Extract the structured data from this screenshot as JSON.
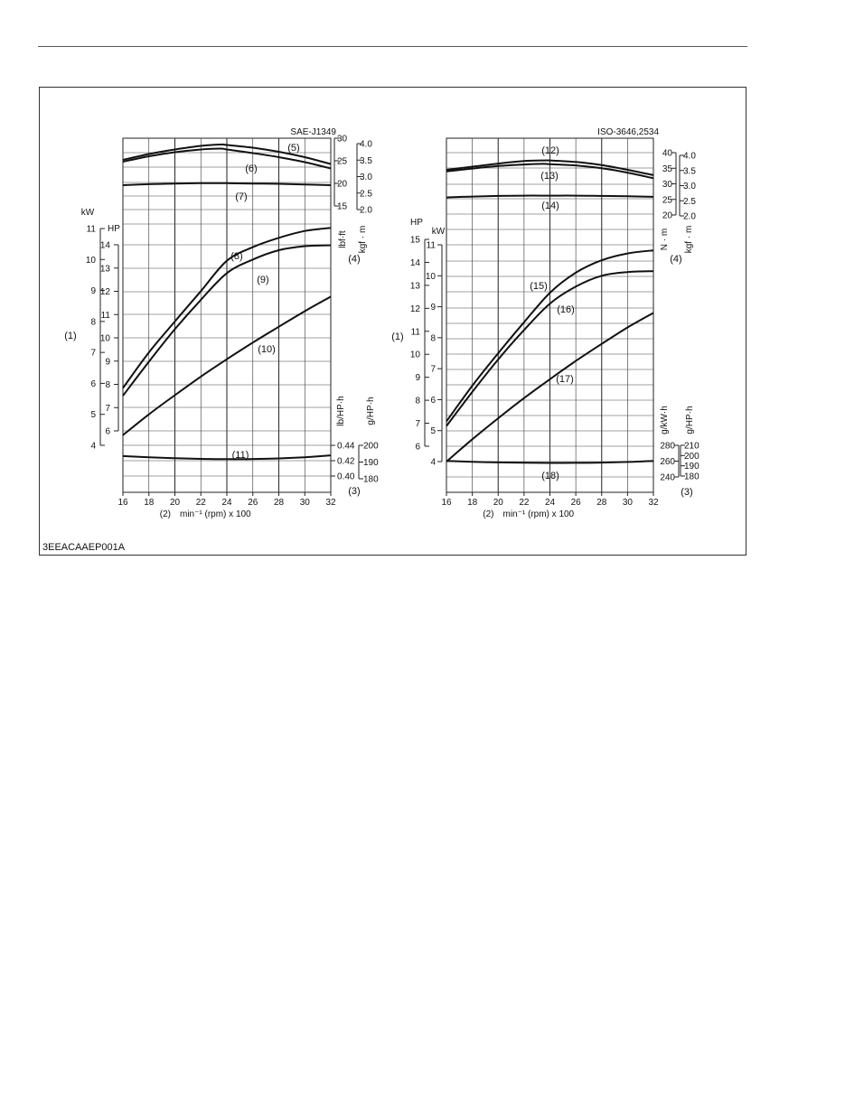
{
  "figure_code": "3EEACAAEP001A",
  "chart_data": [
    {
      "type": "line",
      "title": "SAE-J1349",
      "xlabel_num": "(2)",
      "xlabel": "min⁻¹ (rpm) x 100",
      "xlim": [
        16,
        32
      ],
      "xticks": [
        "16",
        "18",
        "20",
        "22",
        "24",
        "26",
        "28",
        "30",
        "32"
      ],
      "axis_labels": {
        "power_callout": "(1)",
        "kw": "kW",
        "hp": "HP",
        "torque_callout": "(4)",
        "lbfft": "lbf·ft",
        "kgfm": "kgf · m",
        "fuel_callout": "(3)",
        "lbhph": "lb/HP·h",
        "ghph": "g/HP·h"
      },
      "kw_ticks": [
        "4",
        "5",
        "6",
        "7",
        "8",
        "9",
        "10",
        "11"
      ],
      "hp_ticks": [
        "6",
        "7",
        "8",
        "9",
        "10",
        "11",
        "12",
        "13",
        "14"
      ],
      "lbfft_ticks": [
        "15",
        "20",
        "25",
        "30"
      ],
      "kgfm_ticks": [
        "2.0",
        "2.5",
        "3.0",
        "3.5",
        "4.0"
      ],
      "lbhph_ticks": [
        "0.40",
        "0.42",
        "0.44"
      ],
      "ghph_ticks": [
        "180",
        "190",
        "200"
      ],
      "series": [
        {
          "name": "(5)",
          "unit": "lbf·ft",
          "x": [
            16,
            18,
            20,
            22,
            23.5,
            24,
            26,
            28,
            30,
            32
          ],
          "y": [
            25.2,
            26.5,
            27.5,
            28.3,
            28.6,
            28.5,
            27.9,
            27.0,
            25.8,
            24.3
          ]
        },
        {
          "name": "(6)",
          "unit": "lbf·ft",
          "x": [
            16,
            18,
            20,
            22,
            23.5,
            24,
            26,
            28,
            30,
            32
          ],
          "y": [
            24.8,
            26.0,
            26.9,
            27.5,
            27.7,
            27.5,
            26.7,
            25.8,
            24.7,
            23.3
          ]
        },
        {
          "name": "(7)",
          "unit": "kgf·m",
          "x": [
            16,
            18,
            20,
            22,
            24,
            26,
            28,
            30,
            32
          ],
          "y": [
            2.74,
            2.77,
            2.79,
            2.8,
            2.8,
            2.79,
            2.78,
            2.76,
            2.74
          ]
        },
        {
          "name": "(8)",
          "unit": "kW",
          "x": [
            16,
            18,
            20,
            22,
            24,
            26,
            28,
            30,
            32
          ],
          "y": [
            5.85,
            7.0,
            8.0,
            8.98,
            9.96,
            10.4,
            10.7,
            10.92,
            11.02
          ]
        },
        {
          "name": "(9)",
          "unit": "kW",
          "x": [
            16,
            18,
            20,
            22,
            24,
            26,
            28,
            30,
            32
          ],
          "y": [
            5.6,
            6.7,
            7.75,
            8.7,
            9.56,
            10.0,
            10.3,
            10.43,
            10.46
          ]
        },
        {
          "name": "(10)",
          "unit": "kW",
          "x": [
            16,
            18,
            20,
            22,
            24,
            26,
            28,
            30,
            32
          ],
          "y": [
            4.33,
            5.0,
            5.62,
            6.22,
            6.78,
            7.32,
            7.83,
            8.33,
            8.8
          ]
        },
        {
          "name": "(11)",
          "unit": "lb/HP·h",
          "x": [
            16,
            18,
            20,
            22,
            24,
            26,
            28,
            30,
            32
          ],
          "y": [
            0.426,
            0.4245,
            0.4232,
            0.4224,
            0.422,
            0.4222,
            0.423,
            0.4245,
            0.427
          ]
        }
      ]
    },
    {
      "type": "line",
      "title": "ISO-3646,2534",
      "xlabel_num": "(2)",
      "xlabel": "min⁻¹ (rpm) x 100",
      "xlim": [
        16,
        32
      ],
      "xticks": [
        "16",
        "18",
        "20",
        "22",
        "24",
        "26",
        "28",
        "30",
        "32"
      ],
      "axis_labels": {
        "power_callout": "(1)",
        "kw": "kW",
        "hp": "HP",
        "torque_callout": "(4)",
        "nm": "N · m",
        "kgfm": "kgf · m",
        "fuel_callout": "(3)",
        "gkwh": "g/kW·h",
        "ghph": "g/HP·h"
      },
      "kw_ticks": [
        "4",
        "5",
        "6",
        "7",
        "8",
        "9",
        "10",
        "11"
      ],
      "hp_ticks": [
        "6",
        "7",
        "8",
        "9",
        "10",
        "11",
        "12",
        "13",
        "14",
        "15"
      ],
      "nm_ticks": [
        "20",
        "25",
        "30",
        "35",
        "40"
      ],
      "kgfm_ticks": [
        "2.0",
        "2.5",
        "3.0",
        "3.5",
        "4.0"
      ],
      "gkwh_ticks": [
        "240",
        "260",
        "280"
      ],
      "ghph_ticks": [
        "180",
        "190",
        "200",
        "210"
      ],
      "series": [
        {
          "name": "(12)",
          "unit": "N·m",
          "x": [
            16,
            18,
            20,
            22,
            23.5,
            24,
            26,
            28,
            30,
            32
          ],
          "y": [
            34.5,
            35.5,
            36.5,
            37.3,
            37.5,
            37.5,
            37.0,
            36.0,
            34.5,
            32.8
          ]
        },
        {
          "name": "(13)",
          "unit": "N·m",
          "x": [
            16,
            18,
            20,
            22,
            23.5,
            24,
            26,
            28,
            30,
            32
          ],
          "y": [
            34.0,
            34.9,
            35.7,
            36.2,
            36.4,
            36.3,
            35.9,
            35.0,
            33.6,
            31.8
          ]
        },
        {
          "name": "(14)",
          "unit": "kgf·m",
          "x": [
            16,
            18,
            20,
            22,
            24,
            26,
            28,
            30,
            32
          ],
          "y": [
            2.61,
            2.64,
            2.66,
            2.67,
            2.67,
            2.67,
            2.66,
            2.65,
            2.63
          ]
        },
        {
          "name": "(15)",
          "unit": "kW",
          "x": [
            16,
            18,
            20,
            22,
            24,
            26,
            28,
            30,
            32
          ],
          "y": [
            5.3,
            6.45,
            7.5,
            8.5,
            9.45,
            10.1,
            10.5,
            10.72,
            10.82
          ]
        },
        {
          "name": "(16)",
          "unit": "kW",
          "x": [
            16,
            18,
            20,
            22,
            24,
            26,
            28,
            30,
            32
          ],
          "y": [
            5.15,
            6.25,
            7.3,
            8.25,
            9.1,
            9.65,
            10.0,
            10.12,
            10.15
          ]
        },
        {
          "name": "(17)",
          "unit": "kW",
          "x": [
            16,
            18,
            20,
            22,
            24,
            26,
            28,
            30,
            32
          ],
          "y": [
            4.0,
            4.72,
            5.4,
            6.05,
            6.66,
            7.25,
            7.8,
            8.33,
            8.8
          ]
        },
        {
          "name": "(18)",
          "unit": "g/kW·h",
          "x": [
            16,
            18,
            20,
            22,
            24,
            26,
            28,
            30,
            32
          ],
          "y": [
            260.2,
            259.2,
            258.4,
            257.9,
            257.7,
            257.8,
            258.2,
            259.0,
            260.3
          ]
        }
      ]
    }
  ]
}
